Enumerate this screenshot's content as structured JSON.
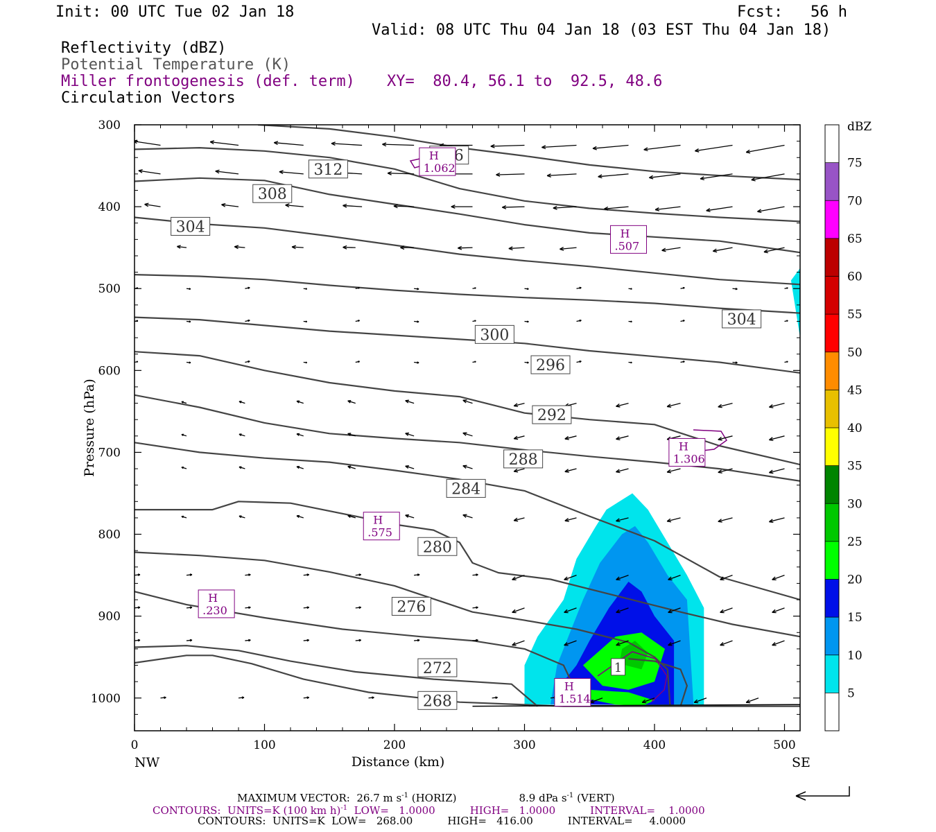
{
  "header": {
    "init": "Init: 00 UTC Tue 02 Jan 18",
    "fcst": "Fcst:   56 h",
    "valid": "Valid: 08 UTC Thu 04 Jan 18 (03 EST Thu 04 Jan 18)",
    "field1": "Reflectivity (dBZ)",
    "field2": "Potential Temperature (K)",
    "field3": "Miller frontogenesis (def. term)",
    "xy": "XY=  80.4, 56.1 to  92.5, 48.6",
    "field4": "Circulation Vectors"
  },
  "footer": {
    "max_vector_a": "MAXIMUM VECTOR:  26.7 m s",
    "max_vector_a_sup": "-1",
    "max_vector_b": " (HORIZ)",
    "max_vector_c": "8.9 dPa s",
    "max_vector_c_sup": "-1",
    "max_vector_d": " (VERT)",
    "contours1_a": "CONTOURS:  UNITS=K (100 km h)",
    "contours1_sup": "-1",
    "contours1_b": "  LOW=   1.0000",
    "contours1_c": "HIGH=   1.0000",
    "contours1_d": "INTERVAL=    1.0000",
    "contours2_a": "CONTOURS:  UNITS=K  LOW=   268.00",
    "contours2_b": "HIGH=   416.00",
    "contours2_c": "INTERVAL=     4.0000"
  },
  "chart_data": {
    "type": "cross-section",
    "xlabel": "Distance (km)",
    "ylabel": "Pressure (hPa)",
    "xlim": [
      0,
      512
    ],
    "ylim": [
      1040,
      300
    ],
    "x_ticks": [
      0,
      100,
      200,
      300,
      400,
      500
    ],
    "y_ticks": [
      300,
      400,
      500,
      600,
      700,
      800,
      900,
      1000
    ],
    "x_end_labels": {
      "left": "NW",
      "right": "SE"
    },
    "colorbar": {
      "title": "dBZ",
      "levels": [
        5,
        10,
        15,
        20,
        25,
        30,
        35,
        40,
        45,
        50,
        55,
        60,
        65,
        70,
        75
      ],
      "colors": [
        "#ffffff",
        "#00e4ec",
        "#0096f0",
        "#0010e8",
        "#00ff00",
        "#00c800",
        "#008400",
        "#ffff00",
        "#e8c000",
        "#ff8c00",
        "#ff0000",
        "#d40000",
        "#bc0000",
        "#ff00ff",
        "#9854c6",
        "#ffffff"
      ]
    },
    "theta_contours": [
      {
        "label": "268",
        "points": [
          [
            0,
            957
          ],
          [
            40,
            948
          ],
          [
            60,
            948
          ],
          [
            90,
            958
          ],
          [
            130,
            977
          ],
          [
            180,
            993
          ],
          [
            250,
            1005
          ],
          [
            330,
            1010
          ],
          [
            420,
            1010
          ],
          [
            512,
            1010
          ]
        ]
      },
      {
        "label": "272",
        "points": [
          [
            0,
            938
          ],
          [
            40,
            936
          ],
          [
            80,
            942
          ],
          [
            120,
            955
          ],
          [
            170,
            968
          ],
          [
            230,
            977
          ],
          [
            290,
            983
          ],
          [
            310,
            1010
          ]
        ]
      },
      {
        "label": "272b",
        "points": [
          [
            420,
            1010
          ],
          [
            425,
            985
          ],
          [
            420,
            965
          ],
          [
            400,
            955
          ],
          [
            380,
            952
          ]
        ]
      },
      {
        "label": "276",
        "points": [
          [
            0,
            870
          ],
          [
            40,
            886
          ],
          [
            100,
            902
          ],
          [
            160,
            916
          ],
          [
            220,
            925
          ],
          [
            260,
            930
          ],
          [
            300,
            940
          ],
          [
            330,
            960
          ],
          [
            345,
            1010
          ]
        ]
      },
      {
        "label": "280",
        "points": [
          [
            0,
            822
          ],
          [
            50,
            826
          ],
          [
            100,
            832
          ],
          [
            150,
            846
          ],
          [
            200,
            863
          ],
          [
            260,
            895
          ],
          [
            300,
            905
          ],
          [
            340,
            916
          ],
          [
            380,
            932
          ],
          [
            400,
            950
          ],
          [
            410,
            965
          ],
          [
            412,
            1010
          ]
        ]
      },
      {
        "label": "284",
        "points": [
          [
            0,
            770
          ],
          [
            60,
            770
          ],
          [
            80,
            760
          ],
          [
            120,
            762
          ],
          [
            170,
            778
          ],
          [
            200,
            788
          ],
          [
            230,
            795
          ],
          [
            250,
            810
          ],
          [
            260,
            835
          ],
          [
            280,
            847
          ],
          [
            320,
            855
          ],
          [
            370,
            875
          ],
          [
            420,
            895
          ],
          [
            460,
            910
          ],
          [
            512,
            925
          ]
        ]
      },
      {
        "label": "288",
        "points": [
          [
            0,
            688
          ],
          [
            50,
            700
          ],
          [
            100,
            707
          ],
          [
            150,
            712
          ],
          [
            200,
            722
          ],
          [
            250,
            733
          ],
          [
            300,
            747
          ],
          [
            350,
            778
          ],
          [
            400,
            808
          ],
          [
            450,
            852
          ],
          [
            512,
            880
          ]
        ]
      },
      {
        "label": "292",
        "points": [
          [
            0,
            630
          ],
          [
            50,
            645
          ],
          [
            100,
            664
          ],
          [
            150,
            677
          ],
          [
            200,
            683
          ],
          [
            250,
            688
          ],
          [
            300,
            697
          ],
          [
            350,
            705
          ],
          [
            400,
            712
          ],
          [
            450,
            720
          ],
          [
            512,
            735
          ]
        ]
      },
      {
        "label": "296",
        "points": [
          [
            0,
            577
          ],
          [
            50,
            582
          ],
          [
            100,
            600
          ],
          [
            150,
            615
          ],
          [
            200,
            625
          ],
          [
            250,
            632
          ],
          [
            300,
            652
          ],
          [
            350,
            660
          ],
          [
            400,
            666
          ],
          [
            450,
            692
          ],
          [
            512,
            715
          ]
        ]
      },
      {
        "label": "300",
        "points": [
          [
            0,
            535
          ],
          [
            50,
            538
          ],
          [
            100,
            545
          ],
          [
            150,
            552
          ],
          [
            200,
            557
          ],
          [
            250,
            562
          ],
          [
            300,
            567
          ],
          [
            350,
            576
          ],
          [
            400,
            583
          ],
          [
            450,
            590
          ],
          [
            512,
            603
          ]
        ]
      },
      {
        "label": "304",
        "points": [
          [
            0,
            483
          ],
          [
            50,
            485
          ],
          [
            100,
            489
          ],
          [
            150,
            496
          ],
          [
            200,
            502
          ],
          [
            250,
            507
          ],
          [
            300,
            511
          ],
          [
            350,
            514
          ],
          [
            400,
            518
          ],
          [
            450,
            524
          ],
          [
            512,
            530
          ]
        ]
      },
      {
        "label": "304b",
        "points": [
          [
            0,
            413
          ],
          [
            50,
            421
          ],
          [
            100,
            426
          ],
          [
            150,
            436
          ],
          [
            200,
            447
          ],
          [
            250,
            458
          ],
          [
            300,
            466
          ],
          [
            350,
            473
          ],
          [
            400,
            481
          ],
          [
            450,
            489
          ],
          [
            512,
            495
          ]
        ]
      },
      {
        "label": "308",
        "points": [
          [
            0,
            369
          ],
          [
            50,
            365
          ],
          [
            100,
            368
          ],
          [
            150,
            385
          ],
          [
            200,
            397
          ],
          [
            250,
            409
          ],
          [
            300,
            422
          ],
          [
            350,
            432
          ],
          [
            400,
            437
          ],
          [
            450,
            442
          ],
          [
            512,
            456
          ]
        ]
      },
      {
        "label": "312",
        "points": [
          [
            0,
            330
          ],
          [
            50,
            328
          ],
          [
            100,
            332
          ],
          [
            150,
            340
          ],
          [
            200,
            354
          ],
          [
            250,
            378
          ],
          [
            300,
            393
          ],
          [
            350,
            402
          ],
          [
            400,
            408
          ],
          [
            450,
            413
          ],
          [
            512,
            418
          ]
        ]
      },
      {
        "label": "316",
        "points": [
          [
            95,
            300
          ],
          [
            150,
            305
          ],
          [
            200,
            315
          ],
          [
            250,
            328
          ],
          [
            300,
            338
          ],
          [
            350,
            349
          ],
          [
            400,
            357
          ],
          [
            450,
            362
          ],
          [
            512,
            367
          ]
        ]
      }
    ],
    "theta_labels": [
      {
        "text": "268",
        "x": 233,
        "y": 1003
      },
      {
        "text": "272",
        "x": 233,
        "y": 963
      },
      {
        "text": "276",
        "x": 213,
        "y": 888
      },
      {
        "text": "280",
        "x": 233,
        "y": 815
      },
      {
        "text": "284",
        "x": 255,
        "y": 744
      },
      {
        "text": "288",
        "x": 299,
        "y": 708
      },
      {
        "text": "292",
        "x": 321,
        "y": 654
      },
      {
        "text": "296",
        "x": 320,
        "y": 593
      },
      {
        "text": "300",
        "x": 277,
        "y": 556
      },
      {
        "text": "304",
        "x": 467,
        "y": 537
      },
      {
        "text": "304",
        "x": 43,
        "y": 424
      },
      {
        "text": "308",
        "x": 106,
        "y": 384
      },
      {
        "text": "312",
        "x": 149,
        "y": 354
      },
      {
        "text": "316",
        "x": 242,
        "y": 337
      }
    ],
    "frontogenesis_maxima": [
      {
        "label": "H",
        "value": ".230",
        "x": 63,
        "y": 885
      },
      {
        "label": "H",
        "value": ".575",
        "x": 190,
        "y": 790
      },
      {
        "label": "H",
        "value": "1.306",
        "x": 425,
        "y": 700
      },
      {
        "label": "H",
        "value": ".507",
        "x": 380,
        "y": 440
      },
      {
        "label": "H",
        "value": "1.062",
        "x": 233,
        "y": 345
      },
      {
        "label": "H",
        "value": "1.514",
        "x": 337,
        "y": 993
      }
    ],
    "frontogenesis_contour_label": {
      "text": "1",
      "x": 372,
      "y": 962
    },
    "reflectivity_regions": [
      {
        "dbz": 5,
        "points": [
          [
            300,
            1008
          ],
          [
            300,
            960
          ],
          [
            310,
            925
          ],
          [
            330,
            880
          ],
          [
            340,
            830
          ],
          [
            355,
            790
          ],
          [
            363,
            770
          ],
          [
            383,
            750
          ],
          [
            395,
            770
          ],
          [
            410,
            810
          ],
          [
            425,
            850
          ],
          [
            438,
            890
          ],
          [
            438,
            1008
          ]
        ]
      },
      {
        "dbz": 5,
        "points": [
          [
            512,
            475
          ],
          [
            505,
            490
          ],
          [
            512,
            560
          ]
        ]
      },
      {
        "dbz": 10,
        "points": [
          [
            320,
            1008
          ],
          [
            325,
            960
          ],
          [
            335,
            920
          ],
          [
            345,
            880
          ],
          [
            358,
            835
          ],
          [
            375,
            800
          ],
          [
            385,
            790
          ],
          [
            395,
            810
          ],
          [
            410,
            850
          ],
          [
            425,
            880
          ],
          [
            430,
            1008
          ]
        ]
      },
      {
        "dbz": 15,
        "points": [
          [
            340,
            1008
          ],
          [
            325,
            990
          ],
          [
            340,
            960
          ],
          [
            350,
            930
          ],
          [
            365,
            890
          ],
          [
            380,
            858
          ],
          [
            390,
            870
          ],
          [
            400,
            900
          ],
          [
            415,
            930
          ],
          [
            415,
            1008
          ]
        ]
      },
      {
        "dbz": 20,
        "points": [
          [
            345,
            960
          ],
          [
            370,
            925
          ],
          [
            390,
            920
          ],
          [
            408,
            940
          ],
          [
            400,
            980
          ],
          [
            380,
            990
          ],
          [
            360,
            985
          ]
        ]
      },
      {
        "dbz": 20,
        "points": [
          [
            345,
            1000
          ],
          [
            350,
            990
          ],
          [
            380,
            993
          ],
          [
            400,
            1003
          ],
          [
            390,
            1010
          ],
          [
            370,
            1008
          ]
        ]
      },
      {
        "dbz": 25,
        "points": [
          [
            373,
            958
          ],
          [
            375,
            940
          ],
          [
            385,
            930
          ],
          [
            395,
            945
          ],
          [
            390,
            965
          ]
        ]
      }
    ]
  }
}
